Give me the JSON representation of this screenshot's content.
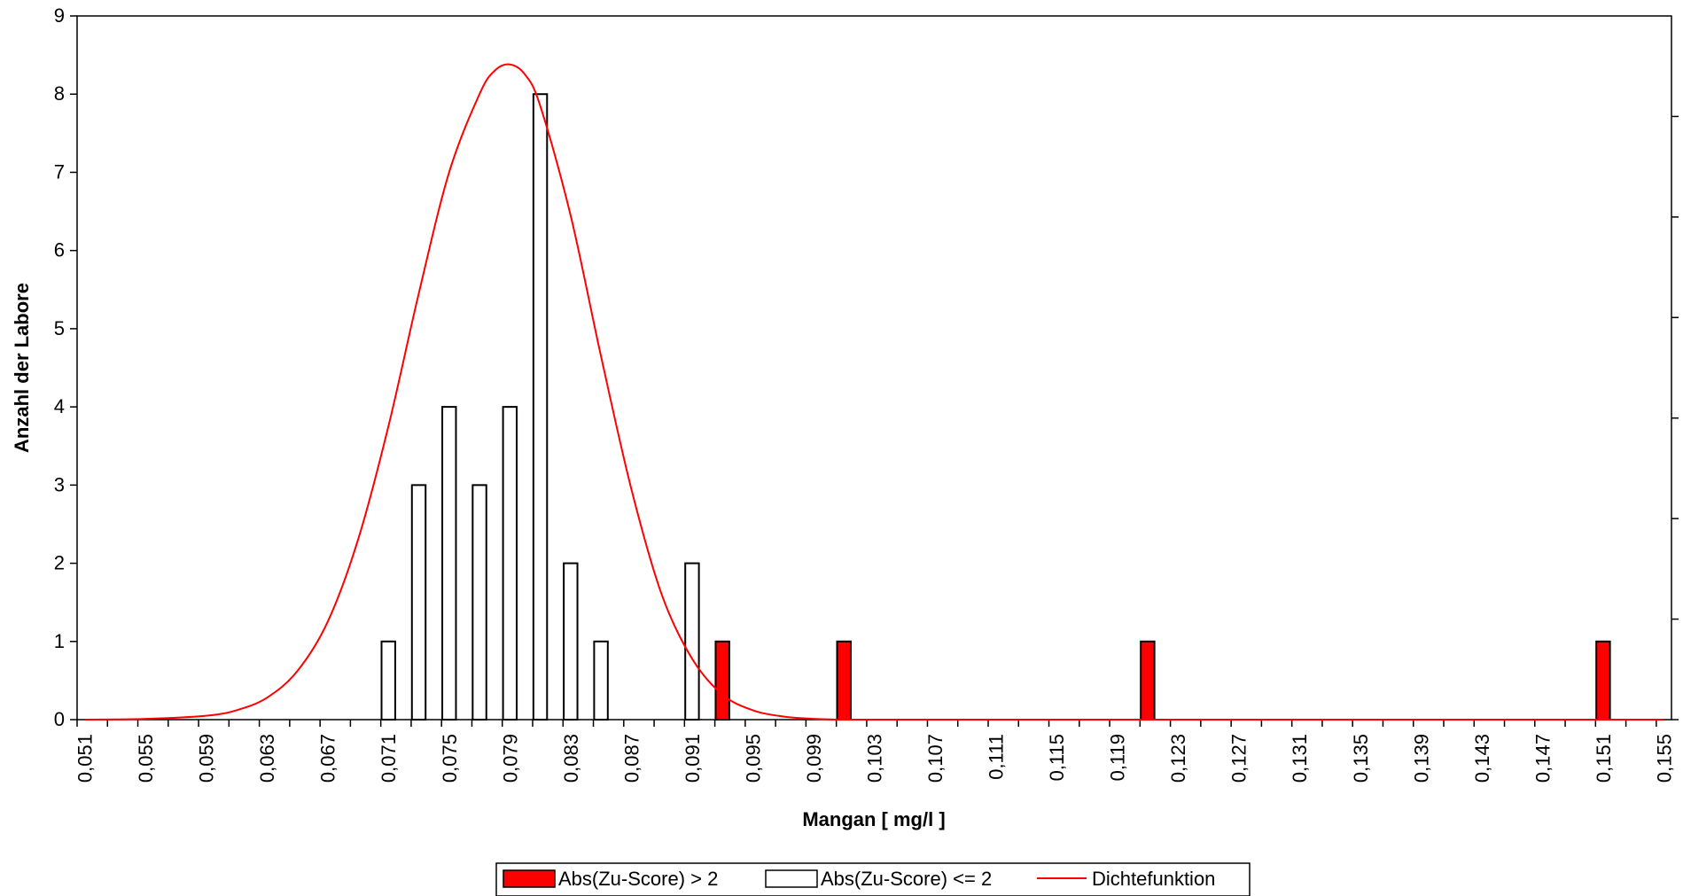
{
  "chart_data": {
    "type": "bar",
    "xlabel": "Mangan [ mg/l ]",
    "ylabel": "Anzahl der Labore",
    "ylim": [
      0,
      9
    ],
    "y_ticks": [
      "0",
      "1",
      "2",
      "3",
      "4",
      "5",
      "6",
      "7",
      "8",
      "9"
    ],
    "x_ticks": [
      "0,051",
      "0,055",
      "0,059",
      "0,063",
      "0,067",
      "0,071",
      "0,075",
      "0,079",
      "0,083",
      "0,087",
      "0,091",
      "0,095",
      "0,099",
      "0,103",
      "0,107",
      "0,111",
      "0,115",
      "0,119",
      "0,123",
      "0,127",
      "0,131",
      "0,135",
      "0,139",
      "0,143",
      "0,147",
      "0,151",
      "0,155"
    ],
    "xlim": [
      0.0505,
      0.1555
    ],
    "bin_width": 0.002,
    "grid": false,
    "legend_position": "bottom-center",
    "series": [
      {
        "name": "Abs(Zu-Score) > 2",
        "kind": "bar",
        "color": "#ff0000",
        "x": [
          0.093,
          0.101,
          0.121,
          0.151
        ],
        "values": [
          1,
          1,
          1,
          1
        ]
      },
      {
        "name": "Abs(Zu-Score) <= 2",
        "kind": "bar",
        "color": "#ffffff",
        "x": [
          0.071,
          0.073,
          0.075,
          0.077,
          0.079,
          0.081,
          0.083,
          0.085,
          0.091
        ],
        "values": [
          1,
          3,
          4,
          3,
          4,
          8,
          2,
          1,
          2
        ]
      },
      {
        "name": "Dichtefunktion",
        "kind": "line",
        "color": "#ff0000",
        "x": [
          0.051,
          0.055,
          0.059,
          0.061,
          0.063,
          0.065,
          0.067,
          0.069,
          0.071,
          0.073,
          0.075,
          0.077,
          0.078,
          0.079,
          0.08,
          0.081,
          0.083,
          0.085,
          0.087,
          0.089,
          0.091,
          0.093,
          0.095,
          0.097,
          0.099,
          0.101,
          0.103,
          0.107,
          0.155
        ],
        "values": [
          0.0,
          0.01,
          0.05,
          0.12,
          0.28,
          0.62,
          1.25,
          2.3,
          3.75,
          5.45,
          7.0,
          8.0,
          8.3,
          8.38,
          8.25,
          7.85,
          6.45,
          4.65,
          2.95,
          1.6,
          0.78,
          0.32,
          0.12,
          0.04,
          0.01,
          0.0,
          0.0,
          0.0,
          0.0
        ]
      }
    ]
  }
}
